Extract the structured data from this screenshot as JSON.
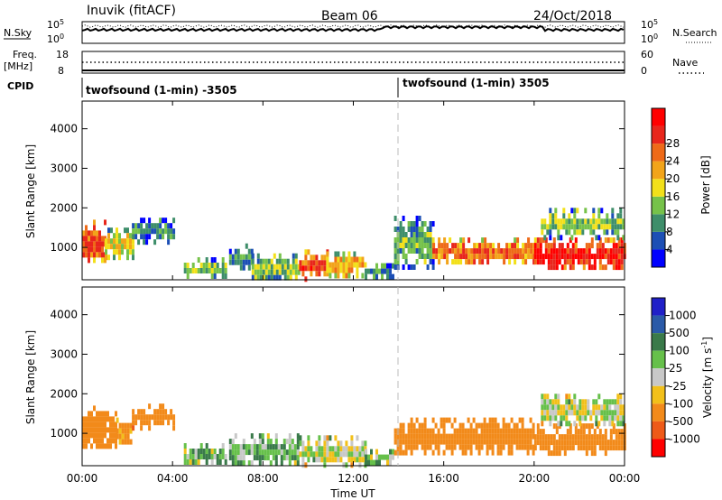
{
  "header": {
    "station": "Inuvik  (fitACF)",
    "beam": "Beam 06",
    "date": "24/Oct/2018"
  },
  "top_panels": {
    "nsky_label": "N.Sky",
    "nsky_ticks": [
      "10^5",
      "10^0"
    ],
    "nsearch_label": "N.Search",
    "freq_label": "Freq.",
    "freq_unit": "[MHz]",
    "freq_ticks": [
      "18",
      "8"
    ],
    "nave_ticks": [
      "60",
      "0"
    ],
    "nave_label": "Nave",
    "cpid_label": "CPID",
    "cpid_segments": [
      "twofsound (1-min) -3505",
      "twofsound (1-min) 3505"
    ]
  },
  "colors": {
    "power": [
      "#0000ff",
      "#1c4fb5",
      "#3e8e6a",
      "#76c24a",
      "#f2e01a",
      "#f2a41a",
      "#ee6a18",
      "#e8261c",
      "#ff0000"
    ],
    "velocity": [
      "#2020c8",
      "#2a5aa8",
      "#3a7a4a",
      "#66c04a",
      "#c8c8c8",
      "#f2c01a",
      "#f28a1a",
      "#ee5a18",
      "#ff0000"
    ]
  },
  "chart_data": [
    {
      "type": "heatmap",
      "name": "power",
      "xlabel": "",
      "ylabel": "Slant Range [km]",
      "x_ticks": [
        "00:00",
        "04:00",
        "08:00",
        "12:00",
        "16:00",
        "20:00",
        "00:00"
      ],
      "x_range": [
        0,
        24
      ],
      "y_ticks": [
        1000,
        2000,
        3000,
        4000
      ],
      "y_range": [
        180,
        4700
      ],
      "colorbar_label": "Power [dB]",
      "colorbar_ticks": [
        "28",
        "24",
        "20",
        "16",
        "12",
        "8",
        "4"
      ],
      "colorbar_range": [
        0,
        32
      ],
      "echo_bands": [
        {
          "t0": 0.0,
          "t1": 1.0,
          "r0": 650,
          "r1": 1700,
          "level": 26
        },
        {
          "t0": 1.0,
          "t1": 2.2,
          "r0": 750,
          "r1": 1500,
          "level": 18
        },
        {
          "t0": 2.2,
          "t1": 4.1,
          "r0": 1200,
          "r1": 1750,
          "level": 10
        },
        {
          "t0": 4.5,
          "t1": 6.3,
          "r0": 280,
          "r1": 750,
          "level": 14
        },
        {
          "t0": 6.5,
          "t1": 7.5,
          "r0": 500,
          "r1": 1100,
          "level": 10
        },
        {
          "t0": 7.5,
          "t1": 9.6,
          "r0": 250,
          "r1": 850,
          "level": 14
        },
        {
          "t0": 9.6,
          "t1": 10.8,
          "r0": 250,
          "r1": 950,
          "level": 26
        },
        {
          "t0": 10.8,
          "t1": 12.5,
          "r0": 300,
          "r1": 900,
          "level": 20
        },
        {
          "t0": 12.5,
          "t1": 13.8,
          "r0": 250,
          "r1": 600,
          "level": 10
        },
        {
          "t0": 13.8,
          "t1": 15.5,
          "r0": 500,
          "r1": 1800,
          "level": 12
        },
        {
          "t0": 15.5,
          "t1": 20.0,
          "r0": 620,
          "r1": 1250,
          "level": 24
        },
        {
          "t0": 20.0,
          "t1": 24.0,
          "r0": 500,
          "r1": 1250,
          "level": 29
        },
        {
          "t0": 20.3,
          "t1": 24.0,
          "r0": 1300,
          "r1": 2000,
          "level": 14
        }
      ]
    },
    {
      "type": "heatmap",
      "name": "velocity",
      "xlabel": "Time UT",
      "ylabel": "Slant Range [km]",
      "x_ticks": [
        "00:00",
        "04:00",
        "08:00",
        "12:00",
        "16:00",
        "20:00",
        "00:00"
      ],
      "x_range": [
        0,
        24
      ],
      "y_ticks": [
        1000,
        2000,
        3000,
        4000
      ],
      "y_range": [
        180,
        4700
      ],
      "colorbar_label": "Velocity [m s^-1]",
      "colorbar_ticks": [
        "1000",
        "500",
        "100",
        "25",
        "-25",
        "-100",
        "-500",
        "-1000"
      ],
      "echo_bands": [
        {
          "t0": 0.0,
          "t1": 1.5,
          "r0": 650,
          "r1": 1700,
          "level": -300
        },
        {
          "t0": 1.5,
          "t1": 2.2,
          "r0": 750,
          "r1": 1400,
          "level": -150
        },
        {
          "t0": 2.2,
          "t1": 4.1,
          "r0": 1150,
          "r1": 1750,
          "level": -400
        },
        {
          "t0": 4.5,
          "t1": 6.3,
          "r0": 280,
          "r1": 750,
          "level": 60
        },
        {
          "t0": 6.5,
          "t1": 9.6,
          "r0": 250,
          "r1": 1000,
          "level": 80
        },
        {
          "t0": 9.6,
          "t1": 12.5,
          "r0": 250,
          "r1": 950,
          "level": 0
        },
        {
          "t0": 12.5,
          "t1": 13.8,
          "r0": 250,
          "r1": 600,
          "level": 50
        },
        {
          "t0": 13.8,
          "t1": 20.0,
          "r0": 500,
          "r1": 1400,
          "level": -350
        },
        {
          "t0": 20.0,
          "t1": 24.0,
          "r0": 500,
          "r1": 1250,
          "level": -300
        },
        {
          "t0": 20.3,
          "t1": 24.0,
          "r0": 1300,
          "r1": 2000,
          "level": 0
        }
      ]
    }
  ]
}
